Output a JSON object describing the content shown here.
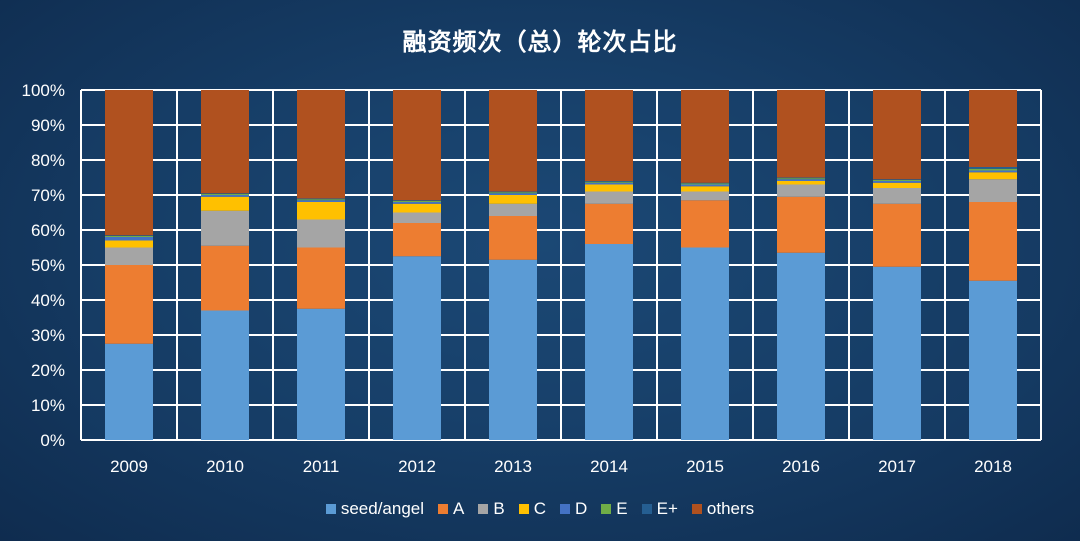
{
  "chart_data": {
    "type": "bar",
    "stacked": true,
    "title": "融资频次（总）轮次占比",
    "categories": [
      "2009",
      "2010",
      "2011",
      "2012",
      "2013",
      "2014",
      "2015",
      "2016",
      "2017",
      "2018"
    ],
    "ylim": [
      0,
      100
    ],
    "yticks": [
      "0%",
      "10%",
      "20%",
      "30%",
      "40%",
      "50%",
      "60%",
      "70%",
      "80%",
      "90%",
      "100%"
    ],
    "grid": true,
    "legend_position": "bottom",
    "series": [
      {
        "name": "seed/angel",
        "color": "#5b9bd5",
        "values": [
          27.5,
          37,
          37.5,
          52.5,
          51.5,
          56,
          55,
          53.5,
          49.5,
          45.5
        ]
      },
      {
        "name": "A",
        "color": "#ed7d31",
        "values": [
          22.5,
          18.5,
          17.5,
          9.5,
          12.5,
          11.5,
          13.5,
          16,
          18,
          22.5
        ]
      },
      {
        "name": "B",
        "color": "#a5a5a5",
        "values": [
          5,
          10,
          8,
          3,
          3.5,
          3.5,
          2.5,
          3.5,
          4.5,
          6.5
        ]
      },
      {
        "name": "C",
        "color": "#ffc000",
        "values": [
          2,
          4,
          5,
          2.5,
          2.5,
          2,
          1.5,
          1,
          1.5,
          2
        ]
      },
      {
        "name": "D",
        "color": "#4472c4",
        "values": [
          1,
          0.5,
          0.5,
          0.5,
          0.5,
          0.5,
          0.5,
          0.5,
          0.5,
          0.5
        ]
      },
      {
        "name": "E",
        "color": "#70ad47",
        "values": [
          0.3,
          0.3,
          0.3,
          0.3,
          0.3,
          0.3,
          0.3,
          0.3,
          0.3,
          0.5
        ]
      },
      {
        "name": "E+",
        "color": "#255e91",
        "values": [
          0.2,
          0.2,
          0.2,
          0.2,
          0.2,
          0.2,
          0.2,
          0.2,
          0.2,
          0.5
        ]
      },
      {
        "name": "others",
        "color": "#b0511f",
        "values": [
          41.5,
          29.5,
          31,
          31.5,
          29,
          26,
          26.5,
          25,
          25.5,
          22
        ]
      }
    ]
  }
}
